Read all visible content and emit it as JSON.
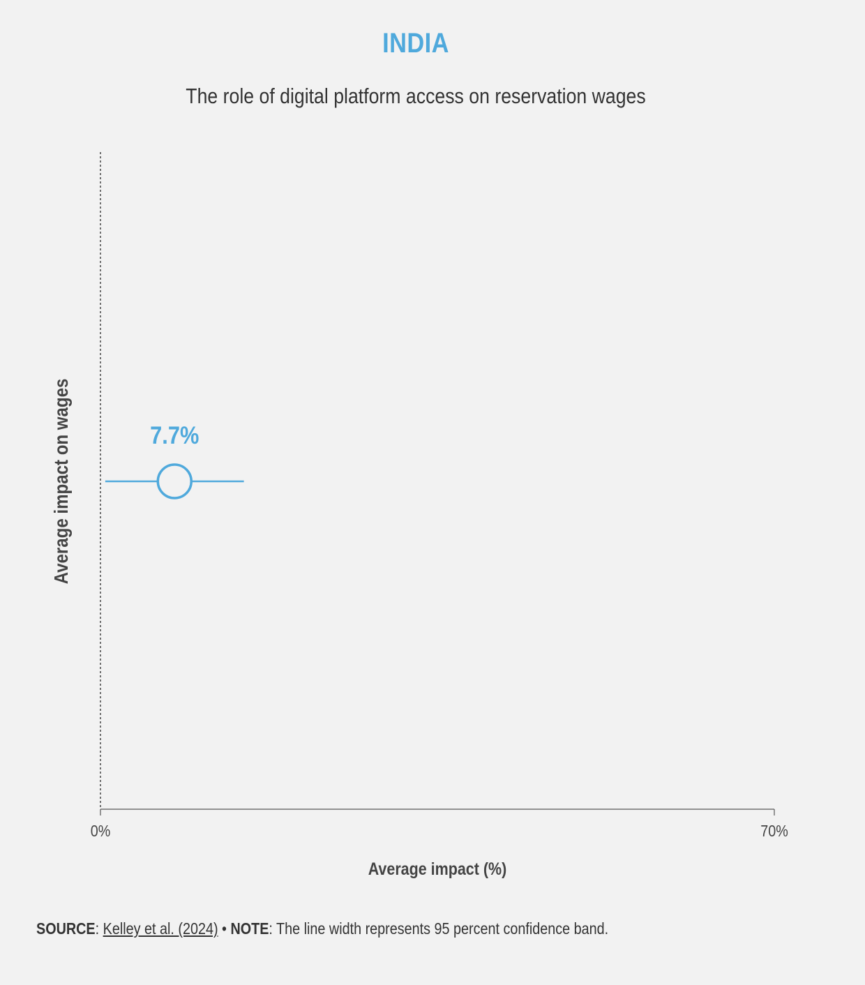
{
  "chart_data": {
    "type": "scatter",
    "title": "INDIA",
    "subtitle": "The role of digital platform access on reservation wages",
    "xlabel": "Average impact (%)",
    "ylabel": "Average impact on wages",
    "xlim": [
      0,
      70
    ],
    "x_tick_labels": [
      "0%",
      "70%"
    ],
    "x_ticks": [
      0,
      70
    ],
    "points": [
      {
        "value": 7.7,
        "ci_low": 0.5,
        "ci_high": 14.9,
        "label": "7.7%"
      }
    ],
    "grid": false,
    "legend": "none"
  },
  "colors": {
    "accent": "#4fa9dc",
    "text": "#3a3a3a",
    "axis": "#444444",
    "background": "#f2f2f2"
  },
  "footer": {
    "source_label": "SOURCE",
    "source_link": "Kelley et al. (2024)",
    "separator": " • ",
    "note_label": "NOTE",
    "note_text": ": The line width represents 95 percent confidence band."
  }
}
